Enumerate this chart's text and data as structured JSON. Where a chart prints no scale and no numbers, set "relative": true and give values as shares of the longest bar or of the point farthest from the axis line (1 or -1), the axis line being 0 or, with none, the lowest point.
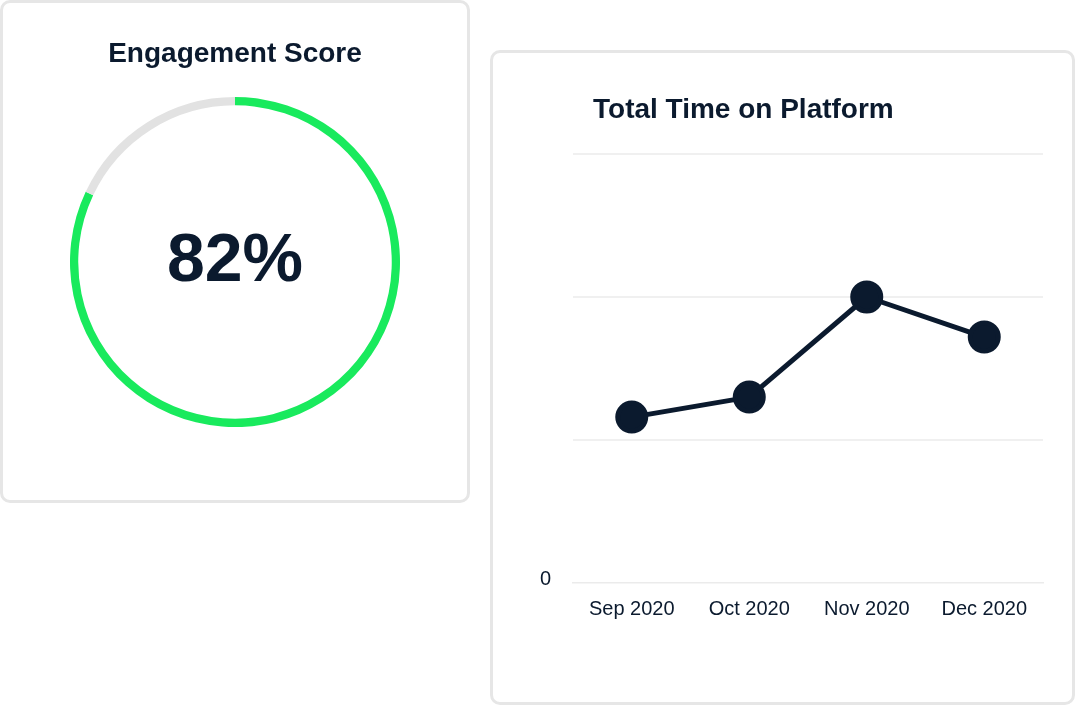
{
  "chart_data": [
    {
      "type": "donut",
      "title": "Engagement Score",
      "categories": [
        null,
        null
      ],
      "values": [
        82,
        18
      ],
      "colors": [
        "#19ea5d",
        "#e2e2e2"
      ],
      "value_labels": [
        "82%",
        null
      ],
      "legend": false
    },
    {
      "type": "line",
      "title": "Total Time on Platform",
      "categories": [
        "Sep 2020",
        "Oct 2020",
        "Nov 2020",
        "Dec 2020"
      ],
      "relative": true,
      "series": [
        {
          "color": "#0b1a2e",
          "values": [
            0.58,
            0.65,
            1,
            0.86
          ]
        }
      ],
      "marker": "circle",
      "legend": false,
      "annotations": [
        "0"
      ],
      "ref_lines": [
        {
          "axis": "y",
          "value": 0.5,
          "color": "#ebebeb"
        },
        {
          "axis": "y",
          "value": 1,
          "color": "#ebebeb"
        },
        {
          "axis": "y",
          "value": 1.5,
          "color": "#ebebeb"
        }
      ]
    }
  ]
}
